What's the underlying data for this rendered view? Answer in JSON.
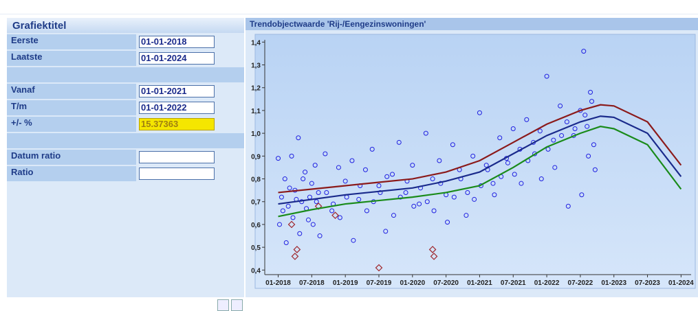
{
  "form": {
    "title": "Grafiektitel",
    "rows": [
      {
        "label": "Eerste",
        "value": "01-01-2018"
      },
      {
        "label": "Laatste",
        "value": "01-01-2024"
      },
      {},
      {
        "label": "Vanaf",
        "value": "01-01-2021"
      },
      {
        "label": "T/m",
        "value": "01-01-2022"
      },
      {
        "label": "+/- %",
        "value": "15.37363",
        "highlight": true
      },
      {},
      {
        "label": "Datum ratio"
      },
      {
        "label": "Ratio"
      }
    ]
  },
  "chart_data": {
    "type": "scatter",
    "title": "Trendobjectwaarde 'Rij-/Eengezinswoningen'",
    "xlim": [
      2017.8,
      2024.15
    ],
    "ylim": [
      0.38,
      1.41
    ],
    "xticks": [
      {
        "value": 2018,
        "label": "01-2018"
      },
      {
        "value": 2018.5,
        "label": "07-2018"
      },
      {
        "value": 2019,
        "label": "01-2019"
      },
      {
        "value": 2019.5,
        "label": "07-2019"
      },
      {
        "value": 2020,
        "label": "01-2020"
      },
      {
        "value": 2020.5,
        "label": "07-2020"
      },
      {
        "value": 2021,
        "label": "01-2021"
      },
      {
        "value": 2021.5,
        "label": "07-2021"
      },
      {
        "value": 2022,
        "label": "01-2022"
      },
      {
        "value": 2022.5,
        "label": "07-2022"
      },
      {
        "value": 2023,
        "label": "01-2023"
      },
      {
        "value": 2023.5,
        "label": "07-2023"
      },
      {
        "value": 2024,
        "label": "01-2024"
      }
    ],
    "yticks": [
      {
        "value": 0.4,
        "label": "0,4"
      },
      {
        "value": 0.5,
        "label": "0,5"
      },
      {
        "value": 0.6,
        "label": "0,6"
      },
      {
        "value": 0.7,
        "label": "0,7"
      },
      {
        "value": 0.8,
        "label": "0,8"
      },
      {
        "value": 0.9,
        "label": "0,9"
      },
      {
        "value": 1.0,
        "label": "1,0"
      },
      {
        "value": 1.1,
        "label": "1,1"
      },
      {
        "value": 1.2,
        "label": "1,2"
      },
      {
        "value": 1.3,
        "label": "1,3"
      },
      {
        "value": 1.4,
        "label": "1,4"
      }
    ],
    "scatter": {
      "color": "#1f1fe0",
      "x": [
        2018.0,
        2018.05,
        2018.1,
        2018.15,
        2018.2,
        2018.25,
        2018.3,
        2018.35,
        2018.4,
        2018.45,
        2018.5,
        2018.55,
        2018.6,
        2018.7,
        2018.8,
        2018.9,
        2019.0,
        2019.1,
        2019.2,
        2019.3,
        2019.4,
        2019.5,
        2019.6,
        2019.7,
        2019.8,
        2019.9,
        2020.0,
        2020.1,
        2020.2,
        2020.3,
        2020.4,
        2020.5,
        2020.6,
        2020.7,
        2020.8,
        2020.9,
        2021.0,
        2021.1,
        2021.2,
        2021.3,
        2021.4,
        2021.5,
        2021.6,
        2021.7,
        2021.8,
        2021.9,
        2022.0,
        2022.1,
        2022.2,
        2022.3,
        2022.4,
        2022.5,
        2022.55,
        2022.6,
        2022.65,
        2022.7,
        2018.02,
        2018.07,
        2018.12,
        2018.17,
        2018.22,
        2018.27,
        2018.32,
        2018.37,
        2018.42,
        2018.47,
        2018.52,
        2018.57,
        2018.62,
        2018.72,
        2018.82,
        2018.92,
        2019.02,
        2019.12,
        2019.22,
        2019.32,
        2019.42,
        2019.52,
        2019.62,
        2019.72,
        2019.82,
        2019.92,
        2020.02,
        2020.12,
        2020.22,
        2020.32,
        2020.42,
        2020.52,
        2020.62,
        2020.72,
        2020.82,
        2020.92,
        2021.02,
        2021.12,
        2021.22,
        2021.32,
        2021.42,
        2021.52,
        2021.62,
        2021.72,
        2021.82,
        2021.92,
        2022.02,
        2022.12,
        2022.22,
        2022.32,
        2022.42,
        2022.52,
        2022.57,
        2022.62,
        2022.67,
        2022.72
      ],
      "values": [
        0.89,
        0.72,
        0.8,
        0.68,
        0.9,
        0.75,
        0.98,
        0.7,
        0.83,
        0.62,
        0.78,
        0.86,
        0.74,
        0.91,
        0.66,
        0.85,
        0.79,
        0.88,
        0.71,
        0.84,
        0.93,
        0.77,
        0.57,
        0.82,
        0.96,
        0.74,
        0.86,
        0.69,
        1.0,
        0.8,
        0.88,
        0.73,
        0.95,
        0.84,
        0.64,
        0.9,
        1.09,
        0.86,
        0.78,
        0.98,
        0.89,
        1.02,
        0.93,
        1.06,
        0.96,
        1.01,
        1.25,
        0.97,
        1.12,
        1.05,
        0.99,
        1.1,
        1.36,
        1.03,
        1.18,
        0.95,
        0.6,
        0.66,
        0.52,
        0.76,
        0.63,
        0.71,
        0.56,
        0.8,
        0.67,
        0.72,
        0.6,
        0.7,
        0.55,
        0.74,
        0.69,
        0.63,
        0.72,
        0.53,
        0.77,
        0.66,
        0.7,
        0.74,
        0.81,
        0.64,
        0.72,
        0.79,
        0.68,
        0.76,
        0.7,
        0.66,
        0.78,
        0.61,
        0.72,
        0.8,
        0.74,
        0.71,
        0.77,
        0.84,
        0.73,
        0.81,
        0.87,
        0.82,
        0.78,
        0.88,
        0.91,
        0.8,
        0.93,
        0.85,
        0.99,
        0.68,
        1.02,
        0.73,
        1.08,
        0.9,
        1.14,
        0.84
      ]
    },
    "outliers": {
      "color": "#a0282d",
      "x": [
        2018.2,
        2018.25,
        2018.28,
        2018.6,
        2018.85,
        2019.5,
        2020.3,
        2020.32
      ],
      "values": [
        0.6,
        0.46,
        0.49,
        0.68,
        0.64,
        0.41,
        0.49,
        0.46
      ]
    },
    "line_x": [
      2018,
      2018.5,
      2019,
      2019.5,
      2020,
      2020.5,
      2021,
      2021.5,
      2022,
      2022.5,
      2022.8,
      2023,
      2023.5,
      2024
    ],
    "lines": [
      {
        "color": "#8b1a1a",
        "values": [
          0.74,
          0.755,
          0.77,
          0.785,
          0.8,
          0.83,
          0.88,
          0.96,
          1.04,
          1.1,
          1.125,
          1.12,
          1.05,
          0.86
        ]
      },
      {
        "color": "#1a2a8b",
        "values": [
          0.69,
          0.71,
          0.73,
          0.745,
          0.76,
          0.79,
          0.83,
          0.91,
          0.99,
          1.05,
          1.075,
          1.07,
          1.0,
          0.81
        ]
      },
      {
        "color": "#1a8b1a",
        "values": [
          0.635,
          0.665,
          0.69,
          0.705,
          0.72,
          0.74,
          0.77,
          0.85,
          0.94,
          1.0,
          1.03,
          1.02,
          0.95,
          0.755
        ]
      }
    ]
  }
}
